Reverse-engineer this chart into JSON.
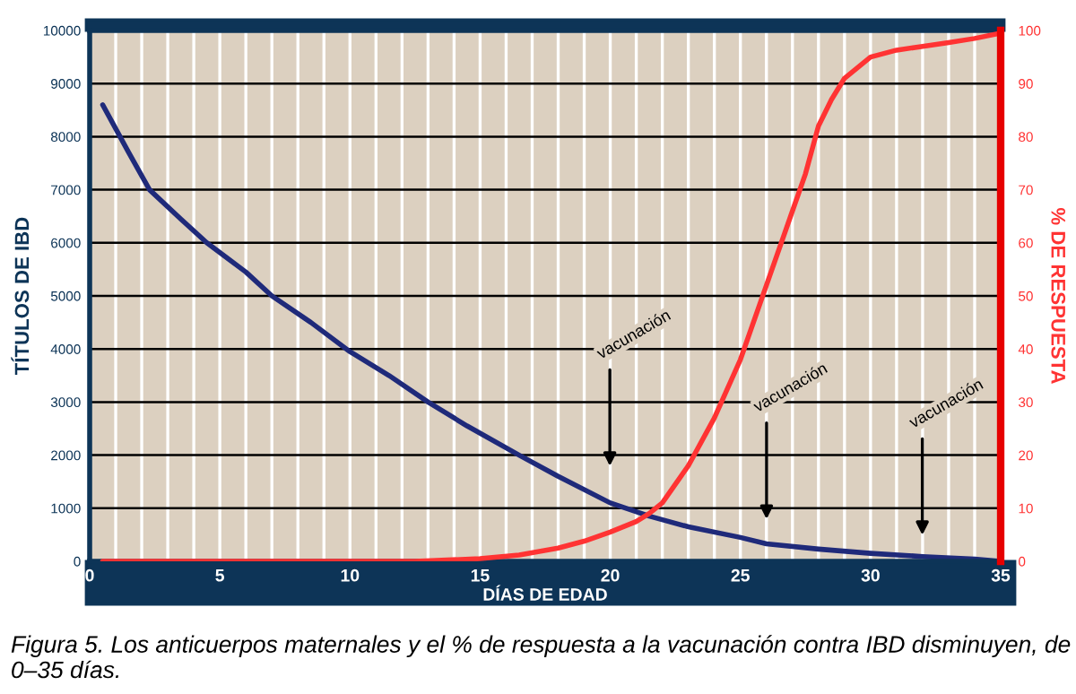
{
  "chart_data": {
    "type": "line",
    "xlabel": "DÍAS DE EDAD",
    "ylabel": "TÍTULOS DE IBD",
    "y2label": "% DE RESPUESTA",
    "series": [
      {
        "name": null,
        "color": "#1f2a7a",
        "x": [
          0.5,
          1.5,
          2.3,
          3.5,
          4.5,
          6,
          7,
          8.5,
          10,
          11.5,
          13,
          14.5,
          16.5,
          18,
          20,
          21.5,
          23,
          25,
          26,
          28,
          30,
          32,
          34,
          35
        ],
        "values": [
          8600,
          7700,
          7000,
          6450,
          6000,
          5450,
          5000,
          4500,
          3950,
          3500,
          3000,
          2550,
          2000,
          1600,
          1100,
          850,
          650,
          450,
          330,
          230,
          150,
          90,
          40,
          0
        ]
      },
      {
        "name": null,
        "color": "#ff3333",
        "axis": "y2",
        "x": [
          0.5,
          5,
          10,
          12.5,
          15,
          16.5,
          18,
          19,
          20,
          21,
          21.5,
          22,
          23,
          24,
          25,
          26,
          27,
          27.5,
          28,
          28.5,
          29,
          30,
          31,
          32,
          33,
          34,
          35
        ],
        "values": [
          0,
          0,
          0,
          0,
          0.5,
          1.2,
          2.5,
          3.8,
          5.5,
          7.5,
          9,
          11,
          18,
          27,
          38,
          52,
          66,
          73,
          82,
          87,
          91,
          95,
          96.3,
          97,
          97.7,
          98.5,
          99.5
        ]
      }
    ],
    "xlim": [
      0,
      35
    ],
    "xticks": [
      0,
      {
        "value": 1,
        "label": null
      },
      {
        "value": 2,
        "label": null
      },
      {
        "value": 3,
        "label": null
      },
      {
        "value": 4,
        "label": null
      },
      5,
      {
        "value": 6,
        "label": null
      },
      {
        "value": 7,
        "label": null
      },
      {
        "value": 8,
        "label": null
      },
      {
        "value": 9,
        "label": null
      },
      10,
      {
        "value": 11,
        "label": null
      },
      {
        "value": 12,
        "label": null
      },
      {
        "value": 13,
        "label": null
      },
      {
        "value": 14,
        "label": null
      },
      15,
      {
        "value": 16,
        "label": null
      },
      {
        "value": 17,
        "label": null
      },
      {
        "value": 18,
        "label": null
      },
      {
        "value": 19,
        "label": null
      },
      20,
      {
        "value": 21,
        "label": null
      },
      {
        "value": 22,
        "label": null
      },
      {
        "value": 23,
        "label": null
      },
      {
        "value": 24,
        "label": null
      },
      25,
      {
        "value": 26,
        "label": null
      },
      {
        "value": 27,
        "label": null
      },
      {
        "value": 28,
        "label": null
      },
      {
        "value": 29,
        "label": null
      },
      30,
      {
        "value": 31,
        "label": null
      },
      {
        "value": 32,
        "label": null
      },
      {
        "value": 33,
        "label": null
      },
      {
        "value": 34,
        "label": null
      },
      35
    ],
    "ylim": [
      0,
      10000
    ],
    "yticks": [
      0,
      1000,
      2000,
      3000,
      4000,
      5000,
      6000,
      7000,
      8000,
      9000,
      10000
    ],
    "y2lim": [
      0,
      100
    ],
    "y2ticks": [
      0,
      10,
      20,
      30,
      40,
      50,
      60,
      70,
      80,
      90,
      100
    ],
    "grid": true,
    "marker": "none",
    "line_style": "solid",
    "annotations": [
      "vacunación",
      "vacunación",
      "vacunación",
      "Figura 5. Los anticuerpos maternales y el % de respuesta a la vacunación contra IBD disminuyen, de 0–35 días."
    ]
  }
}
